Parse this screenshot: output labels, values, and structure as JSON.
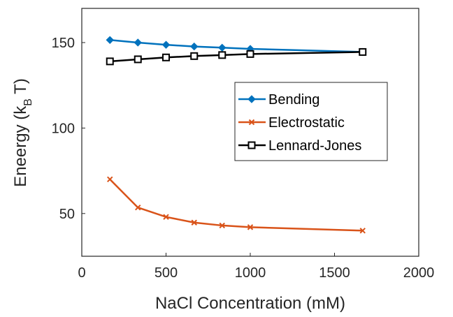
{
  "chart_data": {
    "type": "line",
    "title": "",
    "xlabel": "NaCl Concentration (mM)",
    "ylabel_main": "Eneergy (k",
    "ylabel_sub": "B",
    "ylabel_end": " T)",
    "xlim": [
      0,
      2000
    ],
    "ylim": [
      25,
      170
    ],
    "xticks": [
      0,
      500,
      1000,
      1500,
      2000
    ],
    "yticks": [
      50,
      100,
      150
    ],
    "grid": false,
    "legend_position": "right-center",
    "series": [
      {
        "name": "Bending",
        "color": "#0072BD",
        "marker": "diamond",
        "x": [
          167,
          333,
          500,
          667,
          833,
          1000,
          1667
        ],
        "y": [
          151.5,
          150.0,
          148.7,
          147.7,
          147.0,
          146.3,
          144.5
        ]
      },
      {
        "name": "Electrostatic",
        "color": "#D95319",
        "marker": "x",
        "x": [
          167,
          333,
          500,
          667,
          833,
          1000,
          1667
        ],
        "y": [
          70.0,
          53.5,
          48.0,
          44.7,
          43.0,
          42.0,
          40.0
        ]
      },
      {
        "name": "Lennard-Jones",
        "color": "#000000",
        "marker": "square",
        "x": [
          167,
          333,
          500,
          667,
          833,
          1000,
          1667
        ],
        "y": [
          139.0,
          140.2,
          141.3,
          142.1,
          142.7,
          143.3,
          144.5
        ]
      }
    ]
  }
}
